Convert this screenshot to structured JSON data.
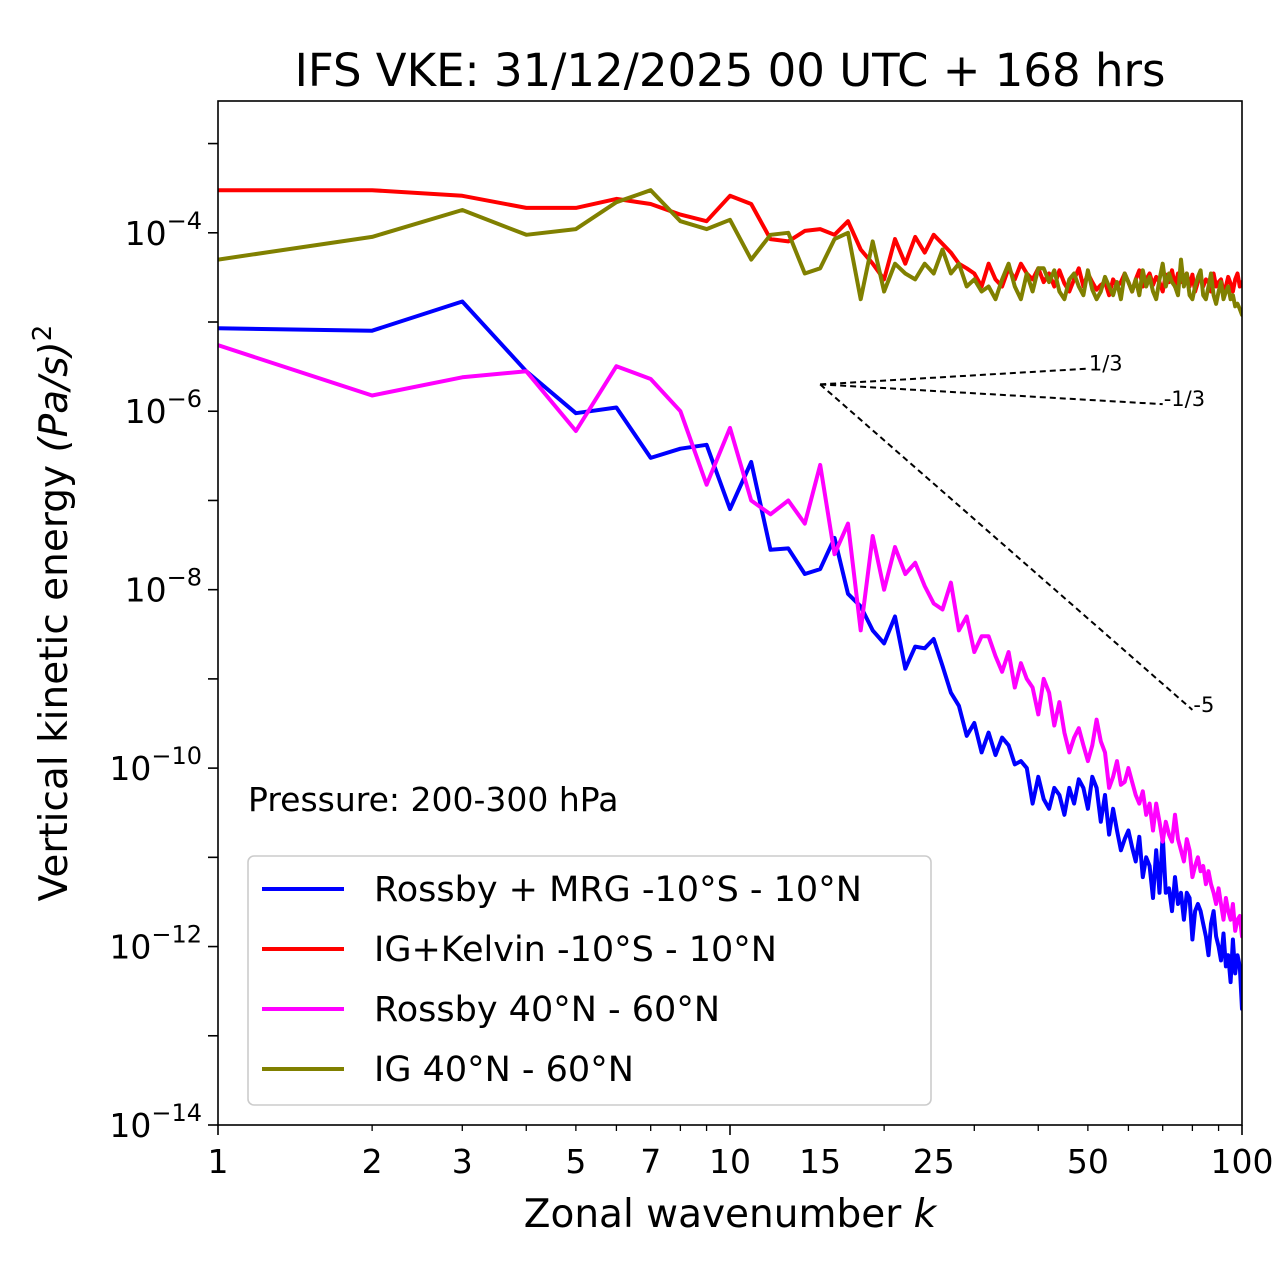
{
  "chart_data": {
    "type": "line",
    "title": "IFS VKE: 31/12/2025 00 UTC + 168 hrs",
    "xlabel_text": "Zonal wavenumber ",
    "xlabel_var": "k",
    "ylabel_text": "Vertical kinetic energy ",
    "ylabel_var": "(Pa/s)",
    "ylabel_exp": "2",
    "xscale": "log",
    "yscale": "log",
    "xlim": [
      1,
      100
    ],
    "ylim": [
      1e-14,
      0.003
    ],
    "x_ticks": [
      {
        "value": 1,
        "label": "1"
      },
      {
        "value": 2,
        "label": "2"
      },
      {
        "value": 3,
        "label": "3"
      },
      {
        "value": 5,
        "label": "5"
      },
      {
        "value": 7,
        "label": "7"
      },
      {
        "value": 10,
        "label": "10"
      },
      {
        "value": 15,
        "label": "15"
      },
      {
        "value": 25,
        "label": "25"
      },
      {
        "value": 50,
        "label": "50"
      },
      {
        "value": 100,
        "label": "100"
      }
    ],
    "y_ticks": [
      {
        "value": 0.0001,
        "base": "10",
        "exp": "−4"
      },
      {
        "value": 1e-06,
        "base": "10",
        "exp": "−6"
      },
      {
        "value": 1e-08,
        "base": "10",
        "exp": "−8"
      },
      {
        "value": 1e-10,
        "base": "10",
        "exp": "−10"
      },
      {
        "value": 1e-12,
        "base": "10",
        "exp": "−12"
      },
      {
        "value": 1e-14,
        "base": "10",
        "exp": "−14"
      }
    ],
    "annotation": "Pressure: 200-300 hPa",
    "legend_position": "lower-left",
    "series": [
      {
        "name": "Rossby + MRG -10°S - 10°N",
        "color": "#0000ff",
        "x": [
          1,
          2,
          3,
          4,
          5,
          6,
          7,
          8,
          9,
          10,
          11,
          12,
          13,
          14,
          15,
          16,
          17,
          18,
          19,
          20,
          21,
          22,
          23,
          24,
          25,
          26,
          27,
          28,
          29,
          30,
          31,
          32,
          33,
          34,
          35,
          36,
          37,
          38,
          39,
          40,
          41,
          42,
          43,
          44,
          45,
          46,
          47,
          48,
          49,
          50,
          51,
          52,
          53,
          54,
          55,
          56,
          57,
          58,
          59,
          60,
          61,
          62,
          63,
          64,
          65,
          66,
          67,
          68,
          69,
          70,
          71,
          72,
          73,
          74,
          75,
          76,
          77,
          78,
          79,
          80,
          81,
          82,
          83,
          84,
          85,
          86,
          87,
          88,
          89,
          90,
          91,
          92,
          93,
          94,
          95,
          96,
          97,
          98,
          99,
          100
        ],
        "y": [
          8.5e-06,
          8e-06,
          1.7e-05,
          2.8e-06,
          9.5e-07,
          1.1e-06,
          3e-07,
          3.8e-07,
          4.2e-07,
          8e-08,
          2.7e-07,
          2.8e-08,
          2.9e-08,
          1.5e-08,
          1.7e-08,
          3.8e-08,
          9e-09,
          6.5e-09,
          3.5e-09,
          2.5e-09,
          5e-09,
          1.3e-09,
          2.3e-09,
          2.2e-09,
          2.8e-09,
          1.4e-09,
          7e-10,
          5e-10,
          2.3e-10,
          3.2e-10,
          1.5e-10,
          2.5e-10,
          1.4e-10,
          2.2e-10,
          1.8e-10,
          1.1e-10,
          1.2e-10,
          1e-10,
          4e-11,
          8e-11,
          4.5e-11,
          3.5e-11,
          6e-11,
          5e-11,
          3e-11,
          6e-11,
          4e-11,
          7.5e-11,
          6e-11,
          3.5e-11,
          8e-11,
          6e-11,
          2.5e-11,
          5e-11,
          1.8e-11,
          3.5e-11,
          2e-11,
          1.2e-11,
          1.6e-11,
          2e-11,
          1.3e-11,
          9e-12,
          1.7e-11,
          6e-12,
          1e-11,
          8e-12,
          3.5e-12,
          1.2e-11,
          4e-12,
          1.8e-11,
          4e-12,
          4.5e-12,
          2.5e-12,
          6e-12,
          3e-12,
          4e-12,
          2e-12,
          4e-12,
          3.5e-12,
          1.2e-12,
          2.5e-12,
          3e-12,
          2.5e-12,
          1.8e-12,
          1.3e-12,
          8e-13,
          1.8e-12,
          2.5e-12,
          1.3e-12,
          1e-12,
          7e-13,
          1.4e-12,
          6e-13,
          8e-13,
          4e-13,
          1.2e-12,
          5e-13,
          8e-13,
          6e-13,
          2e-13
        ]
      },
      {
        "name": "IG+Kelvin -10°S - 10°N",
        "color": "#ff0000",
        "x": [
          1,
          2,
          3,
          4,
          5,
          6,
          7,
          8,
          9,
          10,
          11,
          12,
          13,
          14,
          15,
          16,
          17,
          18,
          19,
          20,
          21,
          22,
          23,
          24,
          25,
          26,
          27,
          28,
          29,
          30,
          31,
          32,
          33,
          34,
          35,
          36,
          37,
          38,
          39,
          40,
          41,
          42,
          43,
          44,
          45,
          46,
          47,
          48,
          49,
          50,
          51,
          52,
          53,
          54,
          55,
          56,
          57,
          58,
          59,
          60,
          61,
          62,
          63,
          64,
          65,
          66,
          67,
          68,
          69,
          70,
          71,
          72,
          73,
          74,
          75,
          76,
          77,
          78,
          79,
          80,
          81,
          82,
          83,
          84,
          85,
          86,
          87,
          88,
          89,
          90,
          91,
          92,
          93,
          94,
          95,
          96,
          97,
          98,
          99,
          100
        ],
        "y": [
          0.0003,
          0.0003,
          0.00026,
          0.00019,
          0.00019,
          0.00024,
          0.00021,
          0.00016,
          0.000135,
          0.00026,
          0.00021,
          8.5e-05,
          8e-05,
          0.000105,
          0.00011,
          9.5e-05,
          0.000135,
          6.5e-05,
          4.5e-05,
          3e-05,
          8.5e-05,
          4.5e-05,
          9e-05,
          6e-05,
          9.5e-05,
          7.5e-05,
          6e-05,
          4.5e-05,
          4e-05,
          3.5e-05,
          2.5e-05,
          4.5e-05,
          3e-05,
          2.5e-05,
          4e-05,
          3e-05,
          4.5e-05,
          3.5e-05,
          3e-05,
          4e-05,
          2.8e-05,
          3.5e-05,
          2.5e-05,
          3.8e-05,
          2.7e-05,
          2.2e-05,
          3e-05,
          4e-05,
          2.5e-05,
          3.5e-05,
          2.8e-05,
          2.3e-05,
          2.6e-05,
          2.8e-05,
          2e-05,
          3e-05,
          2.5e-05,
          2.8e-05,
          3.5e-05,
          2.8e-05,
          2.2e-05,
          3e-05,
          3.8e-05,
          2.5e-05,
          3e-05,
          3.5e-05,
          2.6e-05,
          3.2e-05,
          2.8e-05,
          2.2e-05,
          3.4e-05,
          2.8e-05,
          3.8e-05,
          2.5e-05,
          3.5e-05,
          2.8e-05,
          3e-05,
          3.5e-05,
          2.5e-05,
          3.4e-05,
          2.2e-05,
          2.8e-05,
          3.2e-05,
          2.5e-05,
          3e-05,
          2.8e-05,
          2.2e-05,
          3.5e-05,
          2.5e-05,
          2.8e-05,
          3e-05,
          2.2e-05,
          2.5e-05,
          3.2e-05,
          2.7e-05,
          2.2e-05,
          3e-05,
          3.5e-05,
          2.5e-05,
          2.8e-05
        ]
      },
      {
        "name": "Rossby 40°N - 60°N",
        "color": "#ff00ff",
        "x": [
          1,
          2,
          3,
          4,
          5,
          6,
          7,
          8,
          9,
          10,
          11,
          12,
          13,
          14,
          15,
          16,
          17,
          18,
          19,
          20,
          21,
          22,
          23,
          24,
          25,
          26,
          27,
          28,
          29,
          30,
          31,
          32,
          33,
          34,
          35,
          36,
          37,
          38,
          39,
          40,
          41,
          42,
          43,
          44,
          45,
          46,
          47,
          48,
          49,
          50,
          51,
          52,
          53,
          54,
          55,
          56,
          57,
          58,
          59,
          60,
          61,
          62,
          63,
          64,
          65,
          66,
          67,
          68,
          69,
          70,
          71,
          72,
          73,
          74,
          75,
          76,
          77,
          78,
          79,
          80,
          81,
          82,
          83,
          84,
          85,
          86,
          87,
          88,
          89,
          90,
          91,
          92,
          93,
          94,
          95,
          96,
          97,
          98,
          99,
          100
        ],
        "y": [
          5.5e-06,
          1.5e-06,
          2.4e-06,
          2.8e-06,
          6e-07,
          3.2e-06,
          2.3e-06,
          1e-06,
          1.5e-07,
          6.5e-07,
          1e-07,
          7e-08,
          1e-07,
          5.5e-08,
          2.5e-07,
          2.5e-08,
          5.5e-08,
          3.5e-09,
          4e-08,
          1e-08,
          3e-08,
          1.5e-08,
          2e-08,
          1.1e-08,
          7e-09,
          6e-09,
          1.2e-08,
          3.5e-09,
          5e-09,
          2e-09,
          3e-09,
          3e-09,
          1.8e-09,
          1.2e-09,
          2e-09,
          8e-10,
          1.5e-09,
          1e-09,
          8e-10,
          4e-10,
          1e-09,
          7e-10,
          3e-10,
          5.5e-10,
          2.5e-10,
          1.5e-10,
          2.2e-10,
          2.8e-10,
          1.8e-10,
          1.2e-10,
          1.8e-10,
          3.5e-10,
          2e-10,
          1.5e-10,
          6e-11,
          8e-11,
          1.2e-10,
          6.5e-11,
          7e-11,
          1e-10,
          7e-11,
          5e-11,
          4e-11,
          5.5e-11,
          3e-11,
          4e-11,
          2e-11,
          4e-11,
          2.5e-11,
          1.5e-11,
          2.5e-11,
          1.8e-11,
          1.5e-11,
          3e-11,
          1.6e-11,
          1.2e-11,
          9e-12,
          1.6e-11,
          1.2e-11,
          6e-12,
          8e-12,
          1e-11,
          7e-12,
          8e-12,
          5e-12,
          7e-12,
          5e-12,
          4e-12,
          3e-12,
          4.5e-12,
          3e-12,
          2e-12,
          3.5e-12,
          2.5e-12,
          2e-12,
          3e-12,
          1.5e-12,
          2e-12,
          2.2e-12,
          1.3e-12
        ]
      },
      {
        "name": "IG 40°N - 60°N",
        "color": "#808000",
        "x": [
          1,
          2,
          3,
          4,
          5,
          6,
          7,
          8,
          9,
          10,
          11,
          12,
          13,
          14,
          15,
          16,
          17,
          18,
          19,
          20,
          21,
          22,
          23,
          24,
          25,
          26,
          27,
          28,
          29,
          30,
          31,
          32,
          33,
          34,
          35,
          36,
          37,
          38,
          39,
          40,
          41,
          42,
          43,
          44,
          45,
          46,
          47,
          48,
          49,
          50,
          51,
          52,
          53,
          54,
          55,
          56,
          57,
          58,
          59,
          60,
          61,
          62,
          63,
          64,
          65,
          66,
          67,
          68,
          69,
          70,
          71,
          72,
          73,
          74,
          75,
          76,
          77,
          78,
          79,
          80,
          81,
          82,
          83,
          84,
          85,
          86,
          87,
          88,
          89,
          90,
          91,
          92,
          93,
          94,
          95,
          96,
          97,
          98,
          99,
          100
        ],
        "y": [
          5e-05,
          9e-05,
          0.00018,
          9.5e-05,
          0.00011,
          0.00022,
          0.0003,
          0.000135,
          0.00011,
          0.00014,
          5e-05,
          9.5e-05,
          0.0001,
          3.5e-05,
          4e-05,
          8.5e-05,
          0.0001,
          1.8e-05,
          8e-05,
          2.2e-05,
          4.5e-05,
          3.5e-05,
          3e-05,
          4.5e-05,
          3.5e-05,
          6.5e-05,
          3.5e-05,
          4.5e-05,
          2.5e-05,
          3e-05,
          2.2e-05,
          2.5e-05,
          1.8e-05,
          3e-05,
          4.5e-05,
          2.5e-05,
          1.8e-05,
          3.5e-05,
          2.2e-05,
          4e-05,
          4e-05,
          2.8e-05,
          3.8e-05,
          2.2e-05,
          1.8e-05,
          3e-05,
          3.5e-05,
          2.5e-05,
          2e-05,
          3.8e-05,
          2.3e-05,
          1.8e-05,
          2.2e-05,
          3.2e-05,
          2.5e-05,
          2e-05,
          2.8e-05,
          1.8e-05,
          3.5e-05,
          2.8e-05,
          2.2e-05,
          3e-05,
          2e-05,
          3.8e-05,
          2.5e-05,
          3.2e-05,
          2.2e-05,
          1.8e-05,
          3e-05,
          4.5e-05,
          2.5e-05,
          3.5e-05,
          2.8e-05,
          2.5e-05,
          2e-05,
          5e-05,
          2.5e-05,
          3.5e-05,
          2e-05,
          1.8e-05,
          2.5e-05,
          3.2e-05,
          3.8e-05,
          2e-05,
          1.8e-05,
          2.5e-05,
          3.5e-05,
          2e-05,
          1.6e-05,
          2.2e-05,
          2.8e-05,
          1.8e-05,
          2.2e-05,
          2.5e-05,
          1.8e-05,
          2e-05,
          1.5e-05,
          1.6e-05,
          1.4e-05,
          1.2e-05
        ]
      }
    ],
    "reference_lines": [
      {
        "label": "1/3",
        "x": [
          15,
          50
        ],
        "y": [
          2e-06,
          3e-06
        ]
      },
      {
        "label": "-1/3",
        "x": [
          15,
          70
        ],
        "y": [
          2e-06,
          1.2e-06
        ]
      },
      {
        "label": "-5",
        "x": [
          15,
          80
        ],
        "y": [
          2e-06,
          4.5e-10
        ]
      }
    ]
  }
}
